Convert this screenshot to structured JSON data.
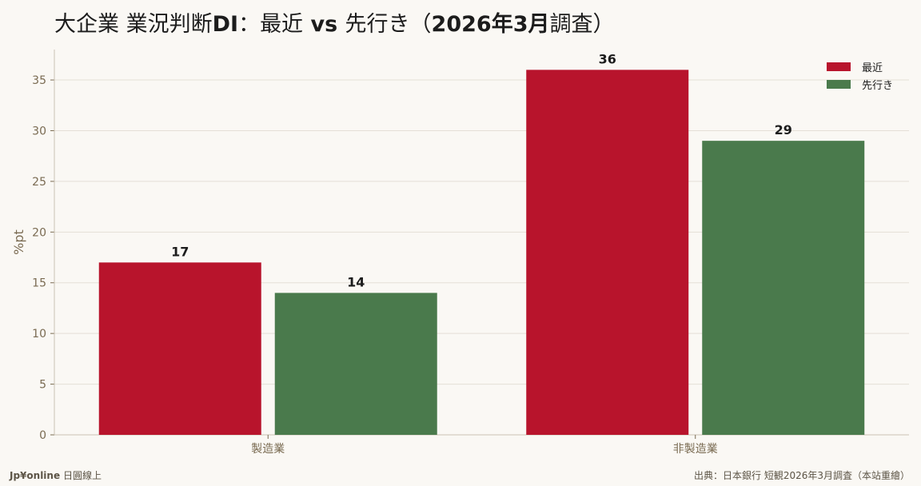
{
  "title": {
    "prefix": "大企業 業況判断",
    "di": "DI",
    "sep": "：",
    "recent": "最近",
    "vs": " vs ",
    "ahead": "先行き",
    "paren_open": "（",
    "date": "2026年3月",
    "survey": "調査",
    "paren_close": "）"
  },
  "footer": {
    "brand": "Jp¥online",
    "brand_suffix": "日圓線上",
    "source": "出典：日本銀行 短観2026年3月調査（本站重繪）"
  },
  "colors": {
    "recent": "#b8142c",
    "ahead": "#4a7a4c",
    "axis_text": "#7a6b52",
    "grid": "#e4dfd6",
    "label": "#1c1c1c"
  },
  "chart_data": {
    "type": "bar",
    "categories": [
      "製造業",
      "非製造業"
    ],
    "series": [
      {
        "name": "最近",
        "values": [
          17,
          36
        ]
      },
      {
        "name": "先行き",
        "values": [
          14,
          29
        ]
      }
    ],
    "ylabel": "%pt",
    "ylim": [
      0,
      38
    ],
    "yticks": [
      0,
      5,
      10,
      15,
      20,
      25,
      30,
      35
    ],
    "grid": true,
    "legend": "top-right"
  }
}
